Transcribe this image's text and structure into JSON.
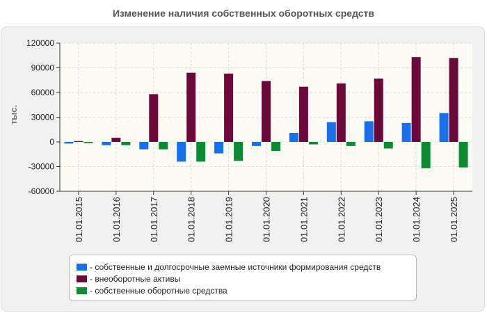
{
  "chart_data": {
    "type": "bar",
    "title": "Изменение наличия собственных оборотных средств",
    "ylabel": "тыс.",
    "xlabel": "",
    "ylim": [
      -60000,
      120000
    ],
    "yticks": [
      120000,
      90000,
      60000,
      30000,
      0,
      -30000,
      -60000
    ],
    "ytick_labels": [
      "120000",
      "90000",
      "60000",
      "30000",
      "0",
      "-30000",
      "-60000"
    ],
    "grid": true,
    "legend_position": "bottom",
    "categories": [
      "01.01.2015",
      "01.01.2016",
      "01.01.2017",
      "01.01.2018",
      "01.01.2019",
      "01.01.2020",
      "01.01.2021",
      "01.01.2022",
      "01.01.2023",
      "01.01.2024",
      "01.01.2025"
    ],
    "series": [
      {
        "name": "- собственные и долгосрочные заемные источники формирования средств",
        "color": "#1a6ee8",
        "values": [
          -2000,
          -4000,
          -9000,
          -24000,
          -14000,
          -5000,
          11000,
          24000,
          25000,
          23000,
          35000
        ]
      },
      {
        "name": "- внеоборотные активы",
        "color": "#6b0a3a",
        "values": [
          1000,
          5000,
          58000,
          84000,
          83000,
          74000,
          67000,
          71000,
          77000,
          103000,
          102000
        ]
      },
      {
        "name": "- собственные оборотные средства",
        "color": "#0d8a33",
        "values": [
          -1500,
          -4000,
          -9000,
          -24000,
          -23000,
          -11000,
          -3000,
          -5000,
          -8000,
          -32000,
          -31000
        ]
      }
    ]
  }
}
